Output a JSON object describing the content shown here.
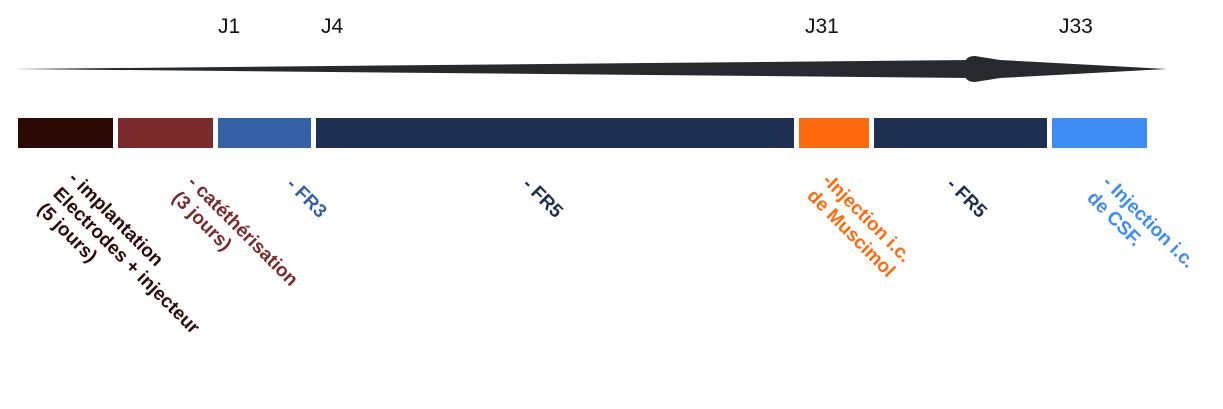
{
  "days": [
    "J1",
    "J4",
    "J31",
    "J33"
  ],
  "phases": [
    {
      "lines": [
        "- implantation",
        "Electrodes + injecteur",
        "(5 jours)"
      ],
      "color": "#2e0a06"
    },
    {
      "lines": [
        "- catéthérisation",
        "(3 jours)"
      ],
      "color": "#7a2a2a"
    },
    {
      "lines": [
        "- FR3"
      ],
      "color": "#3561a6"
    },
    {
      "lines": [
        "- FR5"
      ],
      "color": "#1f2f52"
    },
    {
      "lines": [
        "-Injection i.c.",
        "de Muscimol"
      ],
      "color": "#ff6a0d"
    },
    {
      "lines": [
        "- FR5"
      ],
      "color": "#1f2f52"
    },
    {
      "lines": [
        "- Injection i.c.",
        "de CSF."
      ],
      "color": "#3e8cf5"
    }
  ],
  "arrow_color": "#262a2e"
}
